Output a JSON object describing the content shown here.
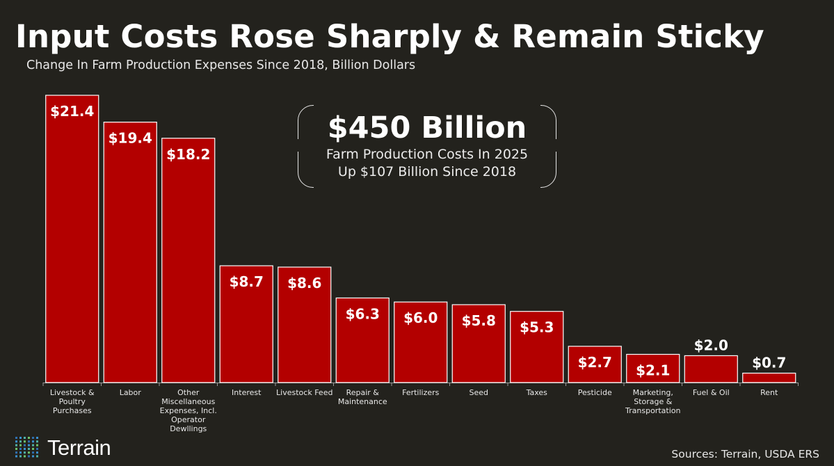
{
  "title": "Input Costs Rose Sharply & Remain Sticky",
  "subtitle": "Change In Farm Production Expenses Since 2018, Billion Dollars",
  "callout": {
    "headline": "$450 Billion",
    "line1": "Farm Production Costs In 2025",
    "line2": "Up $107 Billion Since 2018"
  },
  "logo": {
    "text": "Terrain"
  },
  "sources": "Sources: Terrain,  USDA ERS",
  "colors": {
    "bar": "#b30000",
    "bar_border": "#ffffff",
    "background": "#23221d"
  },
  "chart_data": {
    "type": "bar",
    "title": "Input Costs Rose Sharply & Remain Sticky",
    "ylabel": "Billion Dollars",
    "ylim": [
      0,
      21.4
    ],
    "grid": false,
    "categories": [
      "Livestock & Poultry Purchases",
      "Labor",
      "Other Miscellaneous Expenses, Incl. Operator Dewllings",
      "Interest",
      "Livestock Feed",
      "Repair & Maintenance",
      "Fertilizers",
      "Seed",
      "Taxes",
      "Pesticide",
      "Marketing, Storage & Transportation",
      "Fuel & Oil",
      "Rent"
    ],
    "category_lines": [
      [
        "Livestock &",
        "Poultry",
        "Purchases"
      ],
      [
        "Labor"
      ],
      [
        "Other",
        "Miscellaneous",
        "Expenses, Incl.",
        "Operator",
        "Dewllings"
      ],
      [
        "Interest"
      ],
      [
        "Livestock Feed"
      ],
      [
        "Repair &",
        "Maintenance"
      ],
      [
        "Fertilizers"
      ],
      [
        "Seed"
      ],
      [
        "Taxes"
      ],
      [
        "Pesticide"
      ],
      [
        "Marketing,",
        "Storage &",
        "Transportation"
      ],
      [
        "Fuel & Oil"
      ],
      [
        "Rent"
      ]
    ],
    "values": [
      21.4,
      19.4,
      18.2,
      8.7,
      8.6,
      6.3,
      6.0,
      5.8,
      5.3,
      2.7,
      2.1,
      2.0,
      0.7
    ],
    "labels": [
      "$21.4",
      "$19.4",
      "$18.2",
      "$8.7",
      "$8.6",
      "$6.3",
      "$6.0",
      "$5.8",
      "$5.3",
      "$2.7",
      "$2.1",
      "$2.0",
      "$0.7"
    ]
  }
}
